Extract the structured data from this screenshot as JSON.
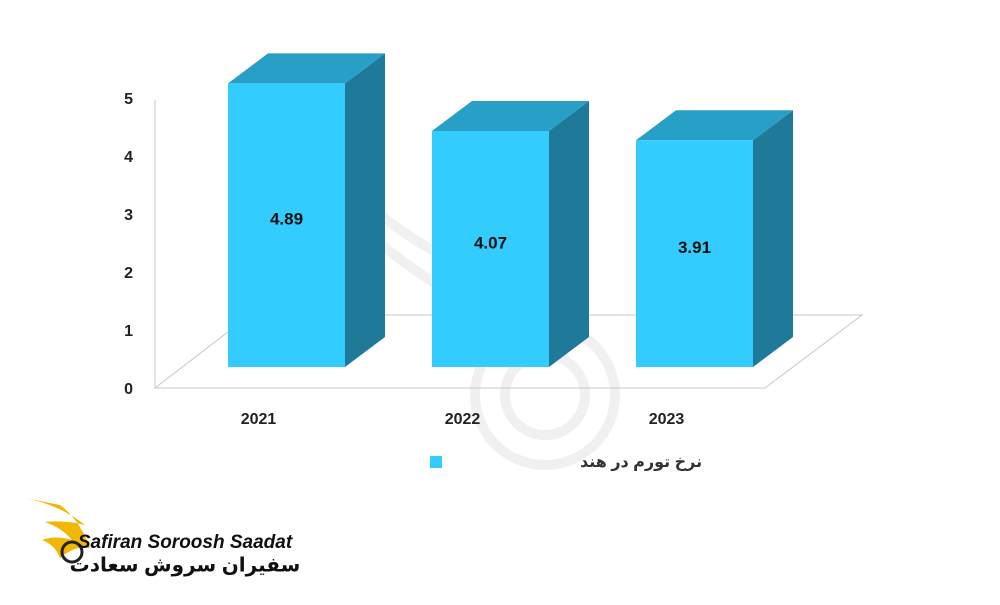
{
  "chart_data": {
    "type": "bar3d",
    "categories": [
      "2021",
      "2022",
      "2023"
    ],
    "series": [
      {
        "name": "نرخ تورم در هند",
        "color": "#33ccff",
        "values": [
          4.89,
          4.07,
          3.91
        ]
      }
    ],
    "ylim": [
      0,
      5
    ],
    "yticks": [
      0,
      1,
      2,
      3,
      4,
      5
    ],
    "legend": "bottom"
  },
  "logo": {
    "name_en": "Safiran Soroosh Saadat",
    "name_fa": "سفیران سروش سعادت"
  }
}
